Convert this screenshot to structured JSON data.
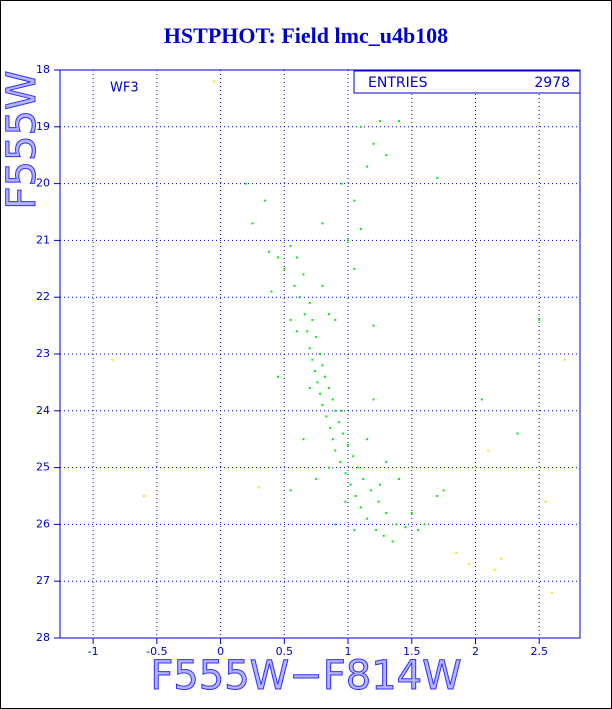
{
  "chart_data": {
    "type": "scatter",
    "title": "HSTPHOT: Field lmc_u4b108",
    "x_label": "F555W−F814W",
    "y_label": "F555W",
    "annotation": "WF3",
    "stats": {
      "label": "ENTRIES",
      "value": "2978"
    },
    "xlim": [
      -1.26,
      2.82
    ],
    "ylim": [
      28,
      18
    ],
    "xticks": [
      -1,
      -0.5,
      0,
      0.5,
      1,
      1.5,
      2,
      2.5
    ],
    "yticks": [
      18,
      19,
      20,
      21,
      22,
      23,
      24,
      25,
      26,
      27,
      28
    ],
    "grid": true,
    "series": [
      {
        "color": "#00ee00",
        "x": [
          0.55,
          0.6,
          0.5,
          0.65,
          0.58,
          0.62,
          0.7,
          0.66,
          0.72,
          0.68,
          0.75,
          0.7,
          0.78,
          0.72,
          0.8,
          0.74,
          0.82,
          0.76,
          0.85,
          0.78,
          0.88,
          0.8,
          0.9,
          0.83,
          0.93,
          0.86,
          0.96,
          0.88,
          1.0,
          0.9,
          1.04,
          0.94,
          1.08,
          0.98,
          1.12,
          1.02,
          1.18,
          1.06,
          1.24,
          1.1,
          1.3,
          1.15,
          1.38,
          1.22,
          1.45,
          1.28,
          1.55,
          0.98,
          0.85,
          1.25,
          0.7,
          0.95,
          0.6,
          0.85,
          0.45,
          0.38,
          0.8,
          0.9,
          1.0,
          1.1,
          1.05,
          1.15,
          1.2,
          1.1,
          1.25,
          1.3,
          0.95,
          1.4,
          1.05,
          1.2,
          0.35,
          0.2,
          0.25,
          0.4,
          0.55,
          1.5,
          1.6,
          1.7,
          1.4,
          1.3,
          0.65,
          0.75,
          0.9,
          1.05,
          1.35,
          1.75,
          2.05,
          2.33,
          2.5,
          0.45,
          1.7,
          0.8,
          1.2,
          0.55,
          1.15
        ],
        "values": [
          21.1,
          21.3,
          21.5,
          21.6,
          21.8,
          22.0,
          22.1,
          22.3,
          22.4,
          22.6,
          22.7,
          22.9,
          23.0,
          23.1,
          23.2,
          23.3,
          23.4,
          23.5,
          23.6,
          23.7,
          23.8,
          23.9,
          24.0,
          24.1,
          24.2,
          24.3,
          24.4,
          24.5,
          24.6,
          24.7,
          24.8,
          24.9,
          25.0,
          25.1,
          25.2,
          25.3,
          25.4,
          25.5,
          25.6,
          25.7,
          25.8,
          25.9,
          26.0,
          26.1,
          26.05,
          26.2,
          26.1,
          25.6,
          25.0,
          25.3,
          23.6,
          24.0,
          22.6,
          22.3,
          21.3,
          21.2,
          21.8,
          22.4,
          21.0,
          20.8,
          20.3,
          19.7,
          19.3,
          19.0,
          18.9,
          19.5,
          20.0,
          18.9,
          21.5,
          22.5,
          20.3,
          20.0,
          20.7,
          21.9,
          22.4,
          25.8,
          26.0,
          25.5,
          25.2,
          24.9,
          24.5,
          25.2,
          26.0,
          26.1,
          26.3,
          25.4,
          23.8,
          24.4,
          22.4,
          23.4,
          19.9,
          20.7,
          23.8,
          25.4,
          24.5
        ]
      },
      {
        "color": "#e8e800",
        "x": [
          -0.6,
          -0.05,
          0.3,
          1.85,
          1.95,
          2.2,
          2.55,
          2.6,
          2.1,
          -0.85,
          2.15,
          2.7
        ],
        "values": [
          25.5,
          18.2,
          25.35,
          26.5,
          26.7,
          26.6,
          25.6,
          27.2,
          24.7,
          23.1,
          26.8,
          23.1
        ]
      }
    ]
  }
}
